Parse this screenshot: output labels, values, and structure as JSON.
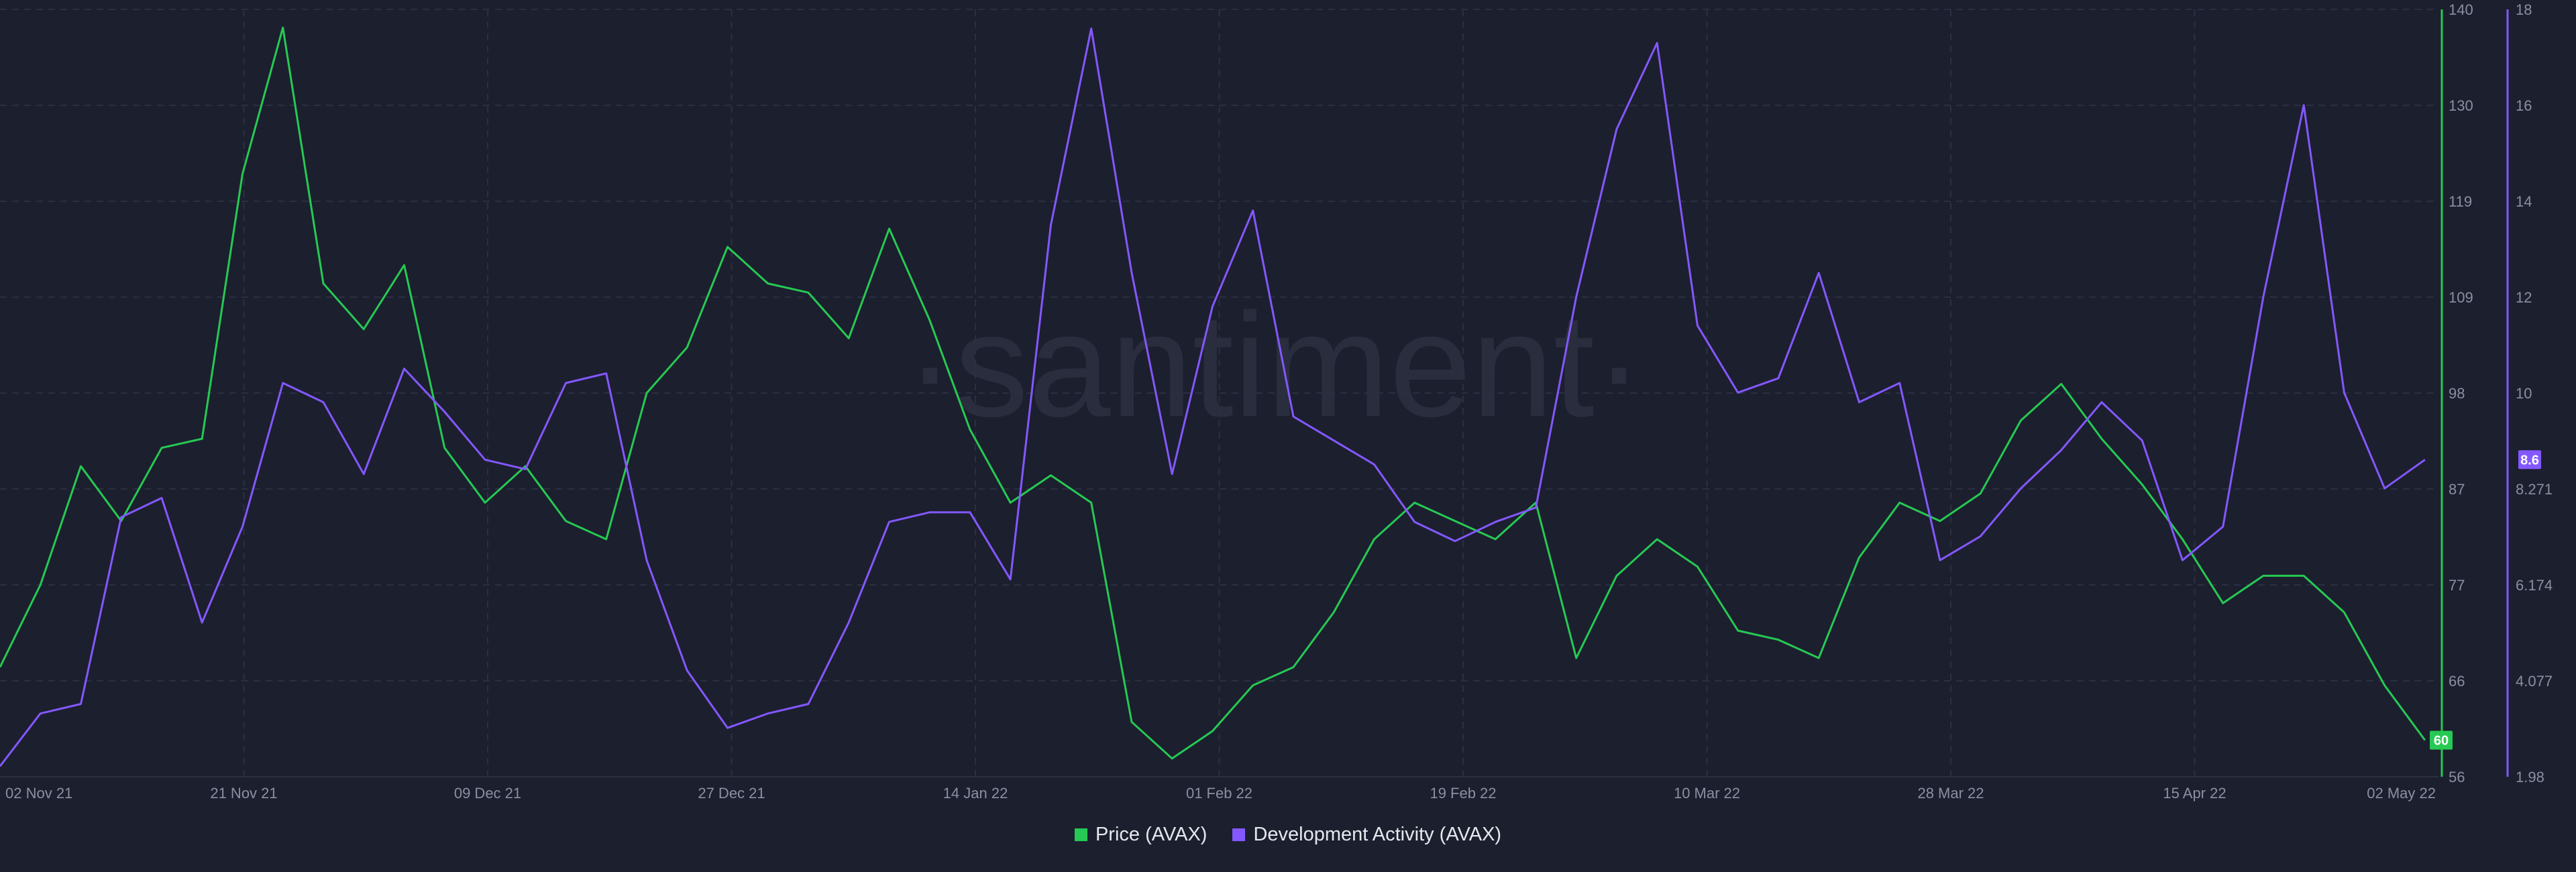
{
  "watermark": "·santiment·",
  "chart_data": {
    "type": "line",
    "x_ticks": [
      "02 Nov 21",
      "21 Nov 21",
      "09 Dec 21",
      "27 Dec 21",
      "14 Jan 22",
      "01 Feb 22",
      "19 Feb 22",
      "10 Mar 22",
      "28 Mar 22",
      "15 Apr 22",
      "02 May 22"
    ],
    "x_range": [
      "2021-11-02",
      "2022-05-02"
    ],
    "y_left": {
      "ticks": [
        "140",
        "130",
        "119",
        "109",
        "98",
        "87",
        "77",
        "66",
        "56"
      ],
      "ylim": [
        56,
        140
      ],
      "color": "#26c953"
    },
    "y_right": {
      "ticks": [
        "18",
        "16",
        "14",
        "12",
        "10",
        "8.271",
        "6.174",
        "4.077",
        "1.98"
      ],
      "ylim": [
        1.98,
        18
      ],
      "color": "#8358ff"
    },
    "last_value_labels": {
      "price": "60",
      "dev_activity": "8.6"
    },
    "grid": true,
    "legend_position": "bottom-center",
    "series": [
      {
        "name": "Price (AVAX)",
        "axis": "left",
        "color": "#26c953",
        "x": [
          "2021-11-02",
          "2021-11-05",
          "2021-11-08",
          "2021-11-11",
          "2021-11-14",
          "2021-11-17",
          "2021-11-20",
          "2021-11-23",
          "2021-11-26",
          "2021-11-29",
          "2021-12-02",
          "2021-12-05",
          "2021-12-08",
          "2021-12-11",
          "2021-12-14",
          "2021-12-17",
          "2021-12-20",
          "2021-12-23",
          "2021-12-26",
          "2021-12-29",
          "2022-01-01",
          "2022-01-04",
          "2022-01-07",
          "2022-01-10",
          "2022-01-13",
          "2022-01-16",
          "2022-01-19",
          "2022-01-22",
          "2022-01-25",
          "2022-01-28",
          "2022-01-31",
          "2022-02-03",
          "2022-02-06",
          "2022-02-09",
          "2022-02-12",
          "2022-02-15",
          "2022-02-18",
          "2022-02-21",
          "2022-02-24",
          "2022-02-27",
          "2022-03-02",
          "2022-03-05",
          "2022-03-08",
          "2022-03-11",
          "2022-03-14",
          "2022-03-17",
          "2022-03-20",
          "2022-03-23",
          "2022-03-26",
          "2022-03-29",
          "2022-04-01",
          "2022-04-04",
          "2022-04-07",
          "2022-04-10",
          "2022-04-13",
          "2022-04-16",
          "2022-04-19",
          "2022-04-22",
          "2022-04-25",
          "2022-04-28",
          "2022-05-01"
        ],
        "values": [
          68,
          77,
          90,
          84,
          92,
          93,
          122,
          138,
          110,
          105,
          112,
          92,
          86,
          90,
          84,
          82,
          98,
          103,
          114,
          110,
          109,
          104,
          116,
          106,
          94,
          86,
          89,
          86,
          62,
          58,
          61,
          66,
          68,
          74,
          82,
          86,
          84,
          82,
          86,
          69,
          78,
          82,
          79,
          72,
          71,
          69,
          80,
          86,
          84,
          87,
          95,
          99,
          93,
          88,
          82,
          75,
          78,
          78,
          74,
          66,
          60
        ]
      },
      {
        "name": "Development Activity (AVAX)",
        "axis": "right",
        "color": "#8358ff",
        "x": [
          "2021-11-02",
          "2021-11-05",
          "2021-11-08",
          "2021-11-11",
          "2021-11-14",
          "2021-11-17",
          "2021-11-20",
          "2021-11-23",
          "2021-11-26",
          "2021-11-29",
          "2021-12-02",
          "2021-12-05",
          "2021-12-08",
          "2021-12-11",
          "2021-12-14",
          "2021-12-17",
          "2021-12-20",
          "2021-12-23",
          "2021-12-26",
          "2021-12-29",
          "2022-01-01",
          "2022-01-04",
          "2022-01-07",
          "2022-01-10",
          "2022-01-13",
          "2022-01-16",
          "2022-01-19",
          "2022-01-22",
          "2022-01-25",
          "2022-01-28",
          "2022-01-31",
          "2022-02-03",
          "2022-02-06",
          "2022-02-09",
          "2022-02-12",
          "2022-02-15",
          "2022-02-18",
          "2022-02-21",
          "2022-02-24",
          "2022-02-27",
          "2022-03-02",
          "2022-03-05",
          "2022-03-08",
          "2022-03-11",
          "2022-03-14",
          "2022-03-17",
          "2022-03-20",
          "2022-03-23",
          "2022-03-26",
          "2022-03-29",
          "2022-04-01",
          "2022-04-04",
          "2022-04-07",
          "2022-04-10",
          "2022-04-13",
          "2022-04-16",
          "2022-04-19",
          "2022-04-22",
          "2022-04-25",
          "2022-04-28",
          "2022-05-01"
        ],
        "values": [
          2.2,
          3.3,
          3.5,
          7.4,
          7.8,
          5.2,
          7.2,
          10.2,
          9.8,
          8.3,
          10.5,
          9.6,
          8.6,
          8.4,
          10.2,
          10.4,
          6.5,
          4.2,
          3.0,
          3.3,
          3.5,
          5.2,
          7.3,
          7.5,
          7.5,
          6.1,
          13.5,
          17.6,
          12.5,
          8.3,
          11.8,
          13.8,
          9.5,
          9.0,
          8.5,
          7.3,
          6.9,
          7.3,
          7.6,
          12.0,
          15.5,
          17.3,
          11.4,
          10.0,
          10.3,
          12.5,
          9.8,
          10.2,
          6.5,
          7.0,
          8.0,
          8.8,
          9.8,
          9.0,
          6.5,
          7.2,
          12.0,
          16.0,
          10.0,
          8.0,
          8.6
        ]
      }
    ]
  },
  "legend": {
    "price_label": "Price (AVAX)",
    "dev_label": "Development Activity (AVAX)",
    "price_color": "#26c953",
    "dev_color": "#8358ff"
  }
}
